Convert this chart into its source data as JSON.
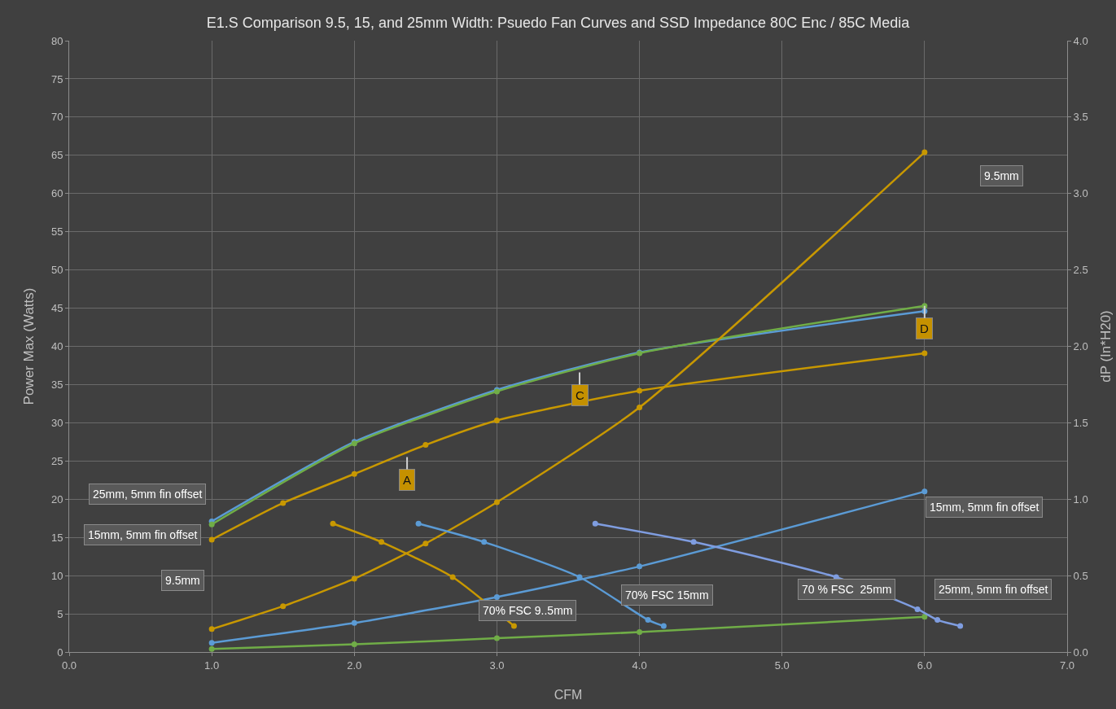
{
  "chart_data": {
    "type": "line",
    "title": "E1.S Comparison 9.5, 15, and 25mm Width: Psuedo Fan Curves and SSD Impedance 80C Enc / 85C Media",
    "xlabel": "CFM",
    "ylabel": "Power Max (Watts)",
    "y2label": "dP (In*H20)",
    "xlim": [
      0,
      7
    ],
    "xticks": [
      {
        "value": 0,
        "label": "0.0"
      },
      {
        "value": 1,
        "label": "1.0"
      },
      {
        "value": 2,
        "label": "2.0"
      },
      {
        "value": 3,
        "label": "3.0"
      },
      {
        "value": 4,
        "label": "4.0"
      },
      {
        "value": 5,
        "label": "5.0"
      },
      {
        "value": 6,
        "label": "6.0"
      },
      {
        "value": 7,
        "label": "7.0"
      }
    ],
    "ylim": [
      0,
      80
    ],
    "yticks": [
      0,
      5,
      10,
      15,
      20,
      25,
      30,
      35,
      40,
      45,
      50,
      55,
      60,
      65,
      70,
      75,
      80
    ],
    "y2lim": [
      0,
      4
    ],
    "y2ticks": [
      {
        "value": 0,
        "label": "0.0"
      },
      {
        "value": 0.5,
        "label": "0.5"
      },
      {
        "value": 1,
        "label": "1.0"
      },
      {
        "value": 1.5,
        "label": "1.5"
      },
      {
        "value": 2,
        "label": "2.0"
      },
      {
        "value": 2.5,
        "label": "2.5"
      },
      {
        "value": 3,
        "label": "3.0"
      },
      {
        "value": 3.5,
        "label": "3.5"
      },
      {
        "value": 4,
        "label": "4.0"
      }
    ],
    "grid": true,
    "marker": "circle",
    "line_style": "solid",
    "series": [
      {
        "color": "#5b9bd5",
        "x": [
          1,
          2,
          3,
          4,
          6
        ],
        "values": [
          17.1,
          27.5,
          34.3,
          39.2,
          44.6
        ]
      },
      {
        "color": "#70ad47",
        "x": [
          1,
          2,
          3,
          4,
          6
        ],
        "values": [
          16.7,
          27.3,
          34.1,
          39.1,
          45.3
        ]
      },
      {
        "color": "#c89800",
        "x": [
          1,
          1.5,
          2,
          2.5,
          3,
          4,
          6
        ],
        "values": [
          14.7,
          19.5,
          23.3,
          27.1,
          30.3,
          34.2,
          39.1
        ]
      },
      {
        "color": "#c89800",
        "axis": "y2",
        "x": [
          1,
          1.5,
          2,
          2.5,
          3,
          4,
          6
        ],
        "values": [
          0.15,
          0.3,
          0.48,
          0.71,
          0.98,
          1.6,
          3.27
        ]
      },
      {
        "color": "#5b9bd5",
        "axis": "y2",
        "x": [
          1,
          2,
          3,
          4,
          6
        ],
        "values": [
          0.06,
          0.19,
          0.36,
          0.56,
          1.05
        ]
      },
      {
        "color": "#70ad47",
        "axis": "y2",
        "x": [
          1,
          2,
          3,
          4,
          6
        ],
        "values": [
          0.02,
          0.05,
          0.09,
          0.13,
          0.23
        ]
      },
      {
        "color": "#c89800",
        "axis": "y2",
        "x": [
          1.85,
          2.19,
          2.69,
          3.12
        ],
        "values": [
          0.84,
          0.72,
          0.49,
          0.17
        ]
      },
      {
        "color": "#5b9bd5",
        "axis": "y2",
        "x": [
          2.45,
          2.91,
          3.58,
          4.06,
          4.17
        ],
        "values": [
          0.84,
          0.72,
          0.49,
          0.21,
          0.17
        ]
      },
      {
        "color": "#7f9de0",
        "axis": "y2",
        "x": [
          3.69,
          4.38,
          5.38,
          5.95,
          6.09,
          6.25
        ],
        "values": [
          0.84,
          0.72,
          0.49,
          0.28,
          0.21,
          0.17
        ]
      }
    ],
    "annotations": [
      "25mm, 5mm fin offset",
      "15mm, 5mm fin offset",
      "9.5mm",
      "70% FSC 9..5mm",
      "70% FSC 15mm",
      "70 % FSC  25mm",
      "9.5mm",
      "15mm, 5mm fin offset",
      "25mm, 5mm fin offset",
      {
        "text": "A",
        "x": 2.37,
        "y": 25.5
      },
      {
        "text": "C",
        "x": 3.58,
        "y": 36.6
      },
      {
        "text": "D",
        "x": 6,
        "y": 45.3
      }
    ]
  }
}
